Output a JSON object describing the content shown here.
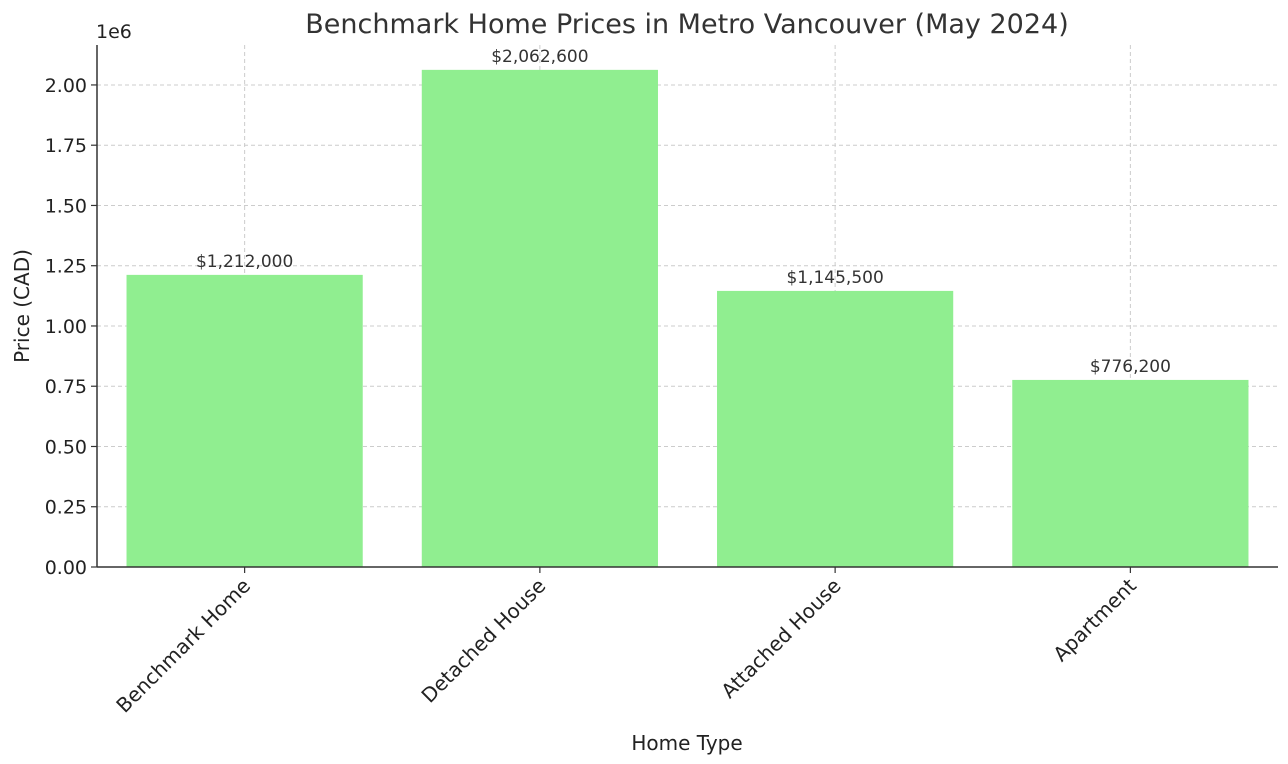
{
  "chart_data": {
    "type": "bar",
    "title": "Benchmark Home Prices in Metro Vancouver (May 2024)",
    "xlabel": "Home Type",
    "ylabel": "Price (CAD)",
    "y_offset_label": "1e6",
    "categories": [
      "Benchmark Home",
      "Detached House",
      "Attached House",
      "Apartment"
    ],
    "values": [
      1212000,
      2062600,
      1145500,
      776200
    ],
    "data_labels": [
      "$1,212,000",
      "$2,062,600",
      "$1,145,500",
      "$776,200"
    ],
    "ylim": [
      0,
      2165730
    ],
    "yticks": [
      0,
      250000,
      500000,
      750000,
      1000000,
      1250000,
      1500000,
      1750000,
      2000000
    ],
    "ytick_labels": [
      "0.00",
      "0.25",
      "0.50",
      "0.75",
      "1.00",
      "1.25",
      "1.50",
      "1.75",
      "2.00"
    ],
    "grid": true,
    "bar_color": "#90ee90"
  }
}
